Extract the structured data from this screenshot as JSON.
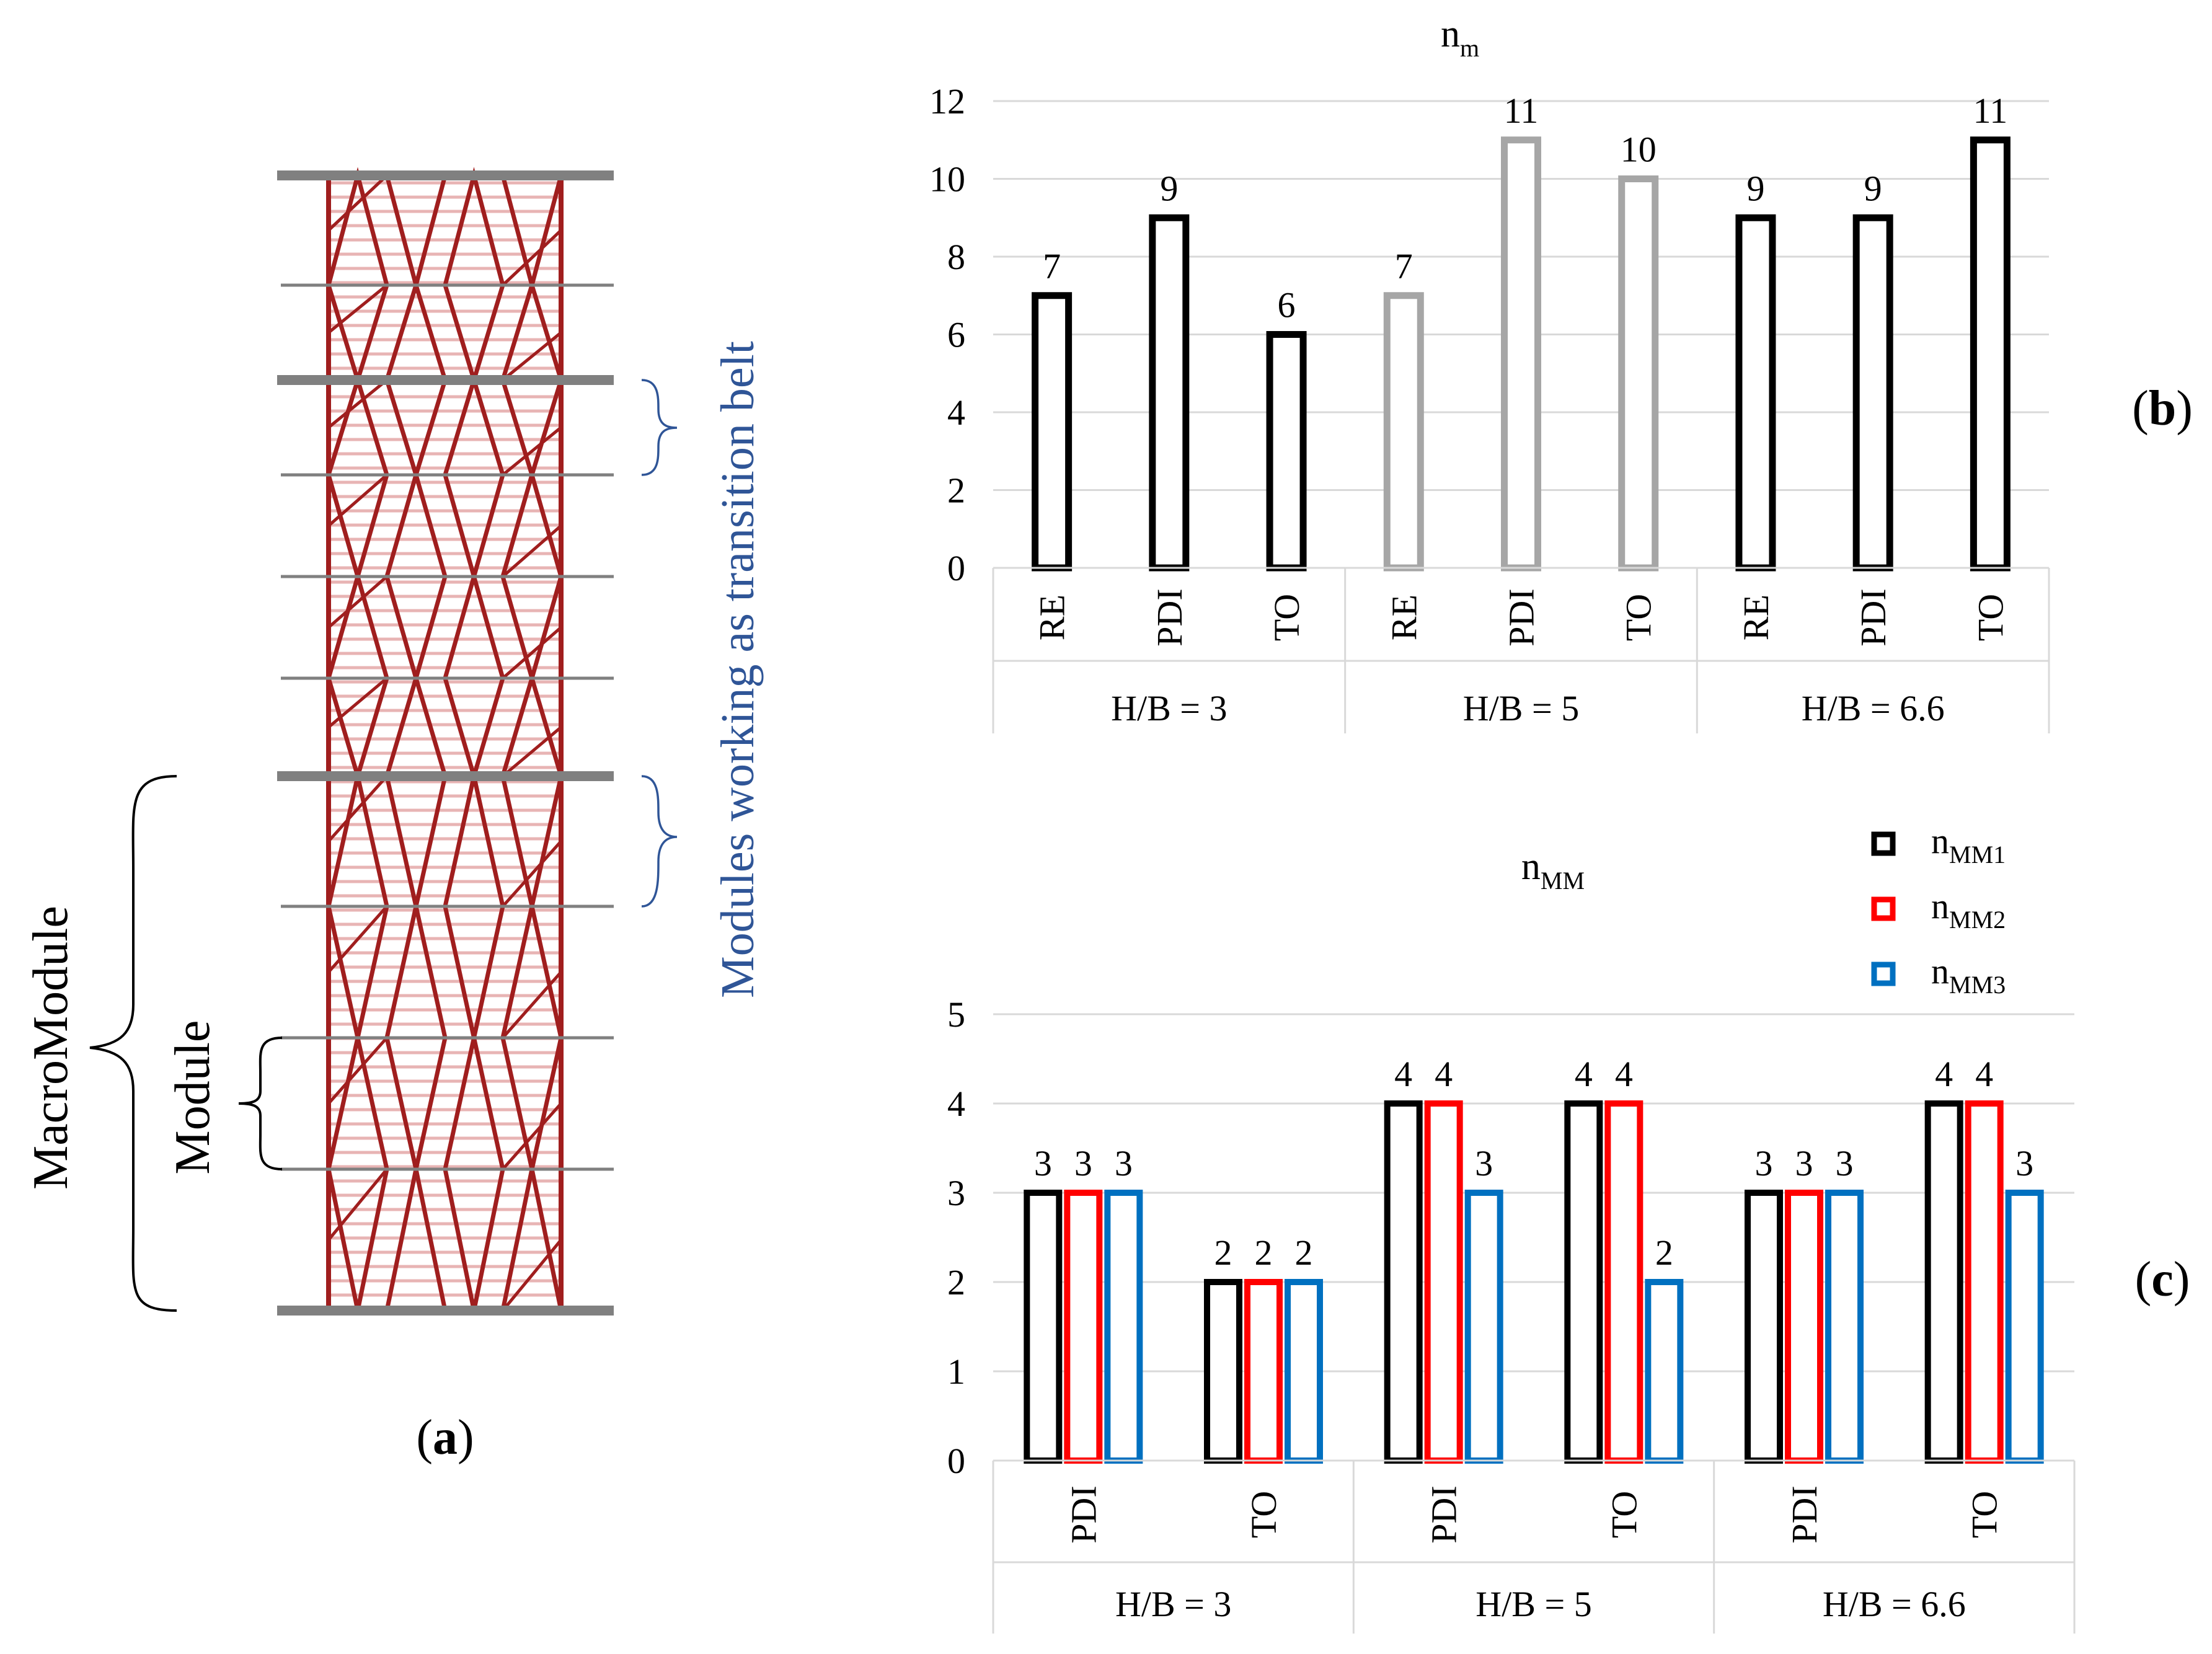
{
  "panel_a": {
    "label_open": "(",
    "label_letter": "a",
    "label_close": ")",
    "macromodule_label": "MacroModule",
    "module_label": "Module",
    "transition_label": "Modules working as transition belt",
    "colors": {
      "brace": "#000000",
      "transition_brace": "#2F5597",
      "transition_text": "#2F5597",
      "diagrid": "#A01E1E",
      "floor": "#E8B4B4",
      "beam": "#808080"
    }
  },
  "chart_data": [
    {
      "type": "bar",
      "panel": "(b)",
      "panel_open": "(",
      "panel_letter": "b",
      "panel_close": ")",
      "title": {
        "base": "n",
        "sub": "m"
      },
      "categories": [
        "RE",
        "PDI",
        "TO",
        "RE",
        "PDI",
        "TO",
        "RE",
        "PDI",
        "TO"
      ],
      "groups": [
        "H/B = 3",
        "H/B = 5",
        "H/B = 6.6"
      ],
      "values": [
        7,
        9,
        6,
        7,
        11,
        10,
        9,
        9,
        11
      ],
      "data_labels": [
        "7",
        "9",
        "6",
        "7",
        "11",
        "10",
        "9",
        "9",
        "11"
      ],
      "bar_colors": [
        "#000000",
        "#000000",
        "#000000",
        "#A6A6A6",
        "#A6A6A6",
        "#A6A6A6",
        "#000000",
        "#000000",
        "#000000"
      ],
      "yticks": [
        "0",
        "2",
        "4",
        "6",
        "8",
        "10",
        "12"
      ],
      "ylim": [
        0,
        12
      ],
      "grid": true
    },
    {
      "type": "bar",
      "panel": "(c)",
      "panel_open": "(",
      "panel_letter": "c",
      "panel_close": ")",
      "title": {
        "base": "n",
        "sub": "MM"
      },
      "categories": [
        "PDI",
        "TO",
        "PDI",
        "TO",
        "PDI",
        "TO"
      ],
      "groups": [
        "H/B = 3",
        "H/B = 5",
        "H/B = 6.6"
      ],
      "series": [
        {
          "base": "n",
          "sub": "MM1",
          "color": "#000000",
          "values": [
            3,
            2,
            4,
            4,
            3,
            4
          ],
          "data_labels": [
            "3",
            "2",
            "4",
            "4",
            "3",
            "4"
          ]
        },
        {
          "base": "n",
          "sub": "MM2",
          "color": "#FF0000",
          "values": [
            3,
            2,
            4,
            4,
            3,
            4
          ],
          "data_labels": [
            "3",
            "2",
            "4",
            "4",
            "3",
            "4"
          ]
        },
        {
          "base": "n",
          "sub": "MM3",
          "color": "#0070C0",
          "values": [
            3,
            2,
            3,
            2,
            3,
            3
          ],
          "data_labels": [
            "3",
            "2",
            "3",
            "2",
            "3",
            "3"
          ]
        }
      ],
      "yticks": [
        "0",
        "1",
        "2",
        "3",
        "4",
        "5"
      ],
      "ylim": [
        0,
        5
      ],
      "grid": true,
      "legend_position": "top-right"
    }
  ]
}
